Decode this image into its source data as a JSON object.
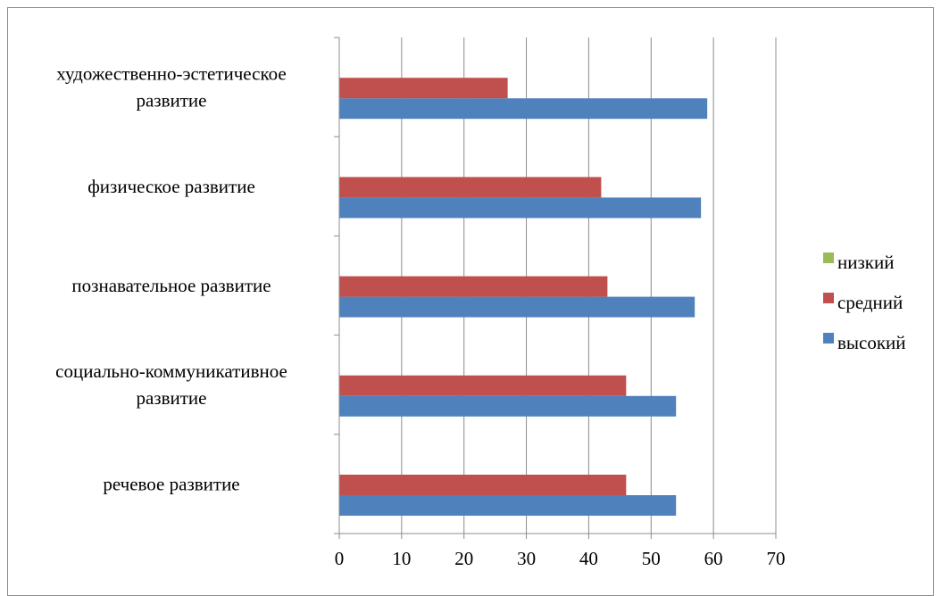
{
  "chart_data": {
    "type": "bar",
    "orientation": "horizontal",
    "categories": [
      "речевое развитие",
      "социально-коммуникативное развитие",
      "познавательное развитие",
      "физическое развитие",
      "художественно-эстетическое развитие"
    ],
    "category_label_lines": [
      [
        "речевое развитие"
      ],
      [
        "социально-коммуникативное",
        "развитие"
      ],
      [
        "познавательное развитие"
      ],
      [
        "физическое развитие"
      ],
      [
        "художественно-эстетическое",
        "развитие"
      ]
    ],
    "series": [
      {
        "name": "низкий",
        "color": "#9bbb59",
        "values": [
          0,
          0,
          0,
          0,
          0
        ]
      },
      {
        "name": "средний",
        "color": "#c0504d",
        "values": [
          46,
          46,
          43,
          42,
          27
        ]
      },
      {
        "name": "высокий",
        "color": "#4f81bd",
        "values": [
          54,
          54,
          57,
          58,
          59
        ]
      }
    ],
    "xlim": [
      0,
      70
    ],
    "xticks": [
      "0",
      "10",
      "20",
      "30",
      "40",
      "50",
      "60",
      "70"
    ],
    "grid": "vertical",
    "legend_position": "right"
  }
}
